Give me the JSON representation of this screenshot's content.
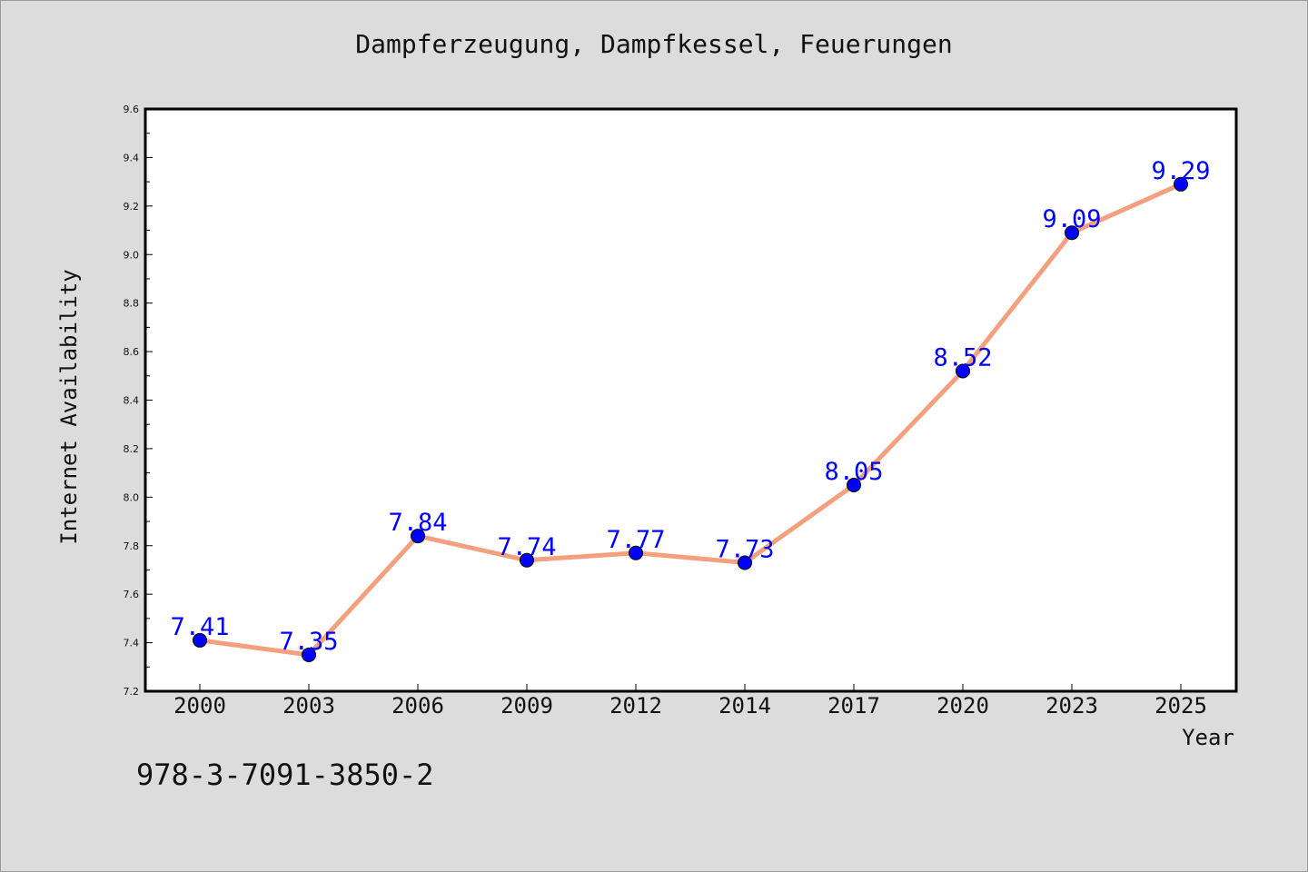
{
  "chart_data": {
    "type": "line",
    "title": "Dampferzeugung, Dampfkessel, Feuerungen",
    "xlabel": "Year",
    "ylabel": "Internet Availability",
    "categories": [
      "2000",
      "2003",
      "2006",
      "2009",
      "2012",
      "2014",
      "2017",
      "2020",
      "2023",
      "2025"
    ],
    "series": [
      {
        "values": [
          7.41,
          7.35,
          7.84,
          7.74,
          7.77,
          7.73,
          8.05,
          8.52,
          9.09,
          9.29
        ]
      }
    ],
    "data_labels": [
      "7.41",
      "7.35",
      "7.84",
      "7.74",
      "7.77",
      "7.73",
      "8.05",
      "8.52",
      "9.09",
      "9.29"
    ],
    "ylim": [
      7.2,
      9.6
    ],
    "yticks": [
      "7.2",
      "7.4",
      "7.6",
      "7.8",
      "8.0",
      "8.2",
      "8.4",
      "8.6",
      "8.8",
      "9.0",
      "9.2",
      "9.4",
      "9.6"
    ],
    "grid": false,
    "legend": "none",
    "colors": {
      "line": "#f4a07f",
      "marker": "#0000ff",
      "data_label": "#0000ff",
      "plot_background": "#ffffff",
      "figure_background": "#dcdcdc"
    }
  },
  "footer": {
    "isbn": "978-3-7091-3850-2"
  }
}
